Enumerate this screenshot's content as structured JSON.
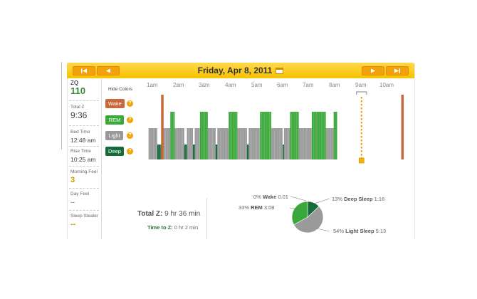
{
  "header": {
    "date": "Friday, Apr 8, 2011",
    "buttons": [
      "first-day",
      "previous-day",
      "next-day",
      "last-day"
    ]
  },
  "stats": {
    "zq_label": "ZQ",
    "zq_value": "110",
    "total_z_label": "Total Z",
    "total_z_value": "9:36",
    "bed_time_label": "Bed Time",
    "bed_time_value": "12:48 am",
    "rise_time_label": "Rise Time",
    "rise_time_value": "10:25 am",
    "morning_feel_label": "Morning Feel",
    "morning_feel_value": "3",
    "day_feel_label": "Day Feel",
    "day_feel_value": "--",
    "sleep_stealer_label": "Sleep Stealer",
    "sleep_stealer_value": "--"
  },
  "legend": {
    "hide_colors": "Hide Colors",
    "help": "?",
    "items": [
      {
        "label": "Wake",
        "color": "#c8673a"
      },
      {
        "label": "REM",
        "color": "#3aa83a"
      },
      {
        "label": "Light",
        "color": "#999999"
      },
      {
        "label": "Deep",
        "color": "#176a3a"
      }
    ]
  },
  "chart_data": {
    "type": "bar",
    "hour_labels": [
      "1am",
      "2am",
      "3am",
      "4am",
      "5am",
      "6am",
      "7am",
      "8am",
      "9am",
      "10am"
    ],
    "stage_values": {
      "Wake": 4,
      "REM": 3,
      "Light": 2,
      "Deep": 1
    },
    "segments": [
      {
        "stage": "Light",
        "minutes": 20
      },
      {
        "stage": "Deep",
        "minutes": 12
      },
      {
        "stage": "Light",
        "minutes": 18
      },
      {
        "stage": "REM",
        "minutes": 10
      },
      {
        "stage": "Light",
        "minutes": 22
      },
      {
        "stage": "Deep",
        "minutes": 6
      },
      {
        "stage": "Light",
        "minutes": 14
      },
      {
        "stage": "Deep",
        "minutes": 4
      },
      {
        "stage": "Light",
        "minutes": 12
      },
      {
        "stage": "REM",
        "minutes": 18
      },
      {
        "stage": "Light",
        "minutes": 18
      },
      {
        "stage": "Deep",
        "minutes": 4
      },
      {
        "stage": "Light",
        "minutes": 26
      },
      {
        "stage": "REM",
        "minutes": 20
      },
      {
        "stage": "Light",
        "minutes": 22
      },
      {
        "stage": "Deep",
        "minutes": 4
      },
      {
        "stage": "Light",
        "minutes": 26
      },
      {
        "stage": "REM",
        "minutes": 26
      },
      {
        "stage": "Light",
        "minutes": 26
      },
      {
        "stage": "Deep",
        "minutes": 3
      },
      {
        "stage": "Light",
        "minutes": 14
      },
      {
        "stage": "REM",
        "minutes": 20
      },
      {
        "stage": "Light",
        "minutes": 30
      },
      {
        "stage": "REM",
        "minutes": 32
      },
      {
        "stage": "Light",
        "minutes": 18
      },
      {
        "stage": "REM",
        "minutes": 8
      }
    ],
    "wake_markers_hours": [
      0.28,
      9.47
    ],
    "current_marker_hour": 7.95
  },
  "summary": {
    "total_z_label": "Total Z:",
    "total_z_value": "9 hr 36 min",
    "time_to_z_label": "Time to Z:",
    "time_to_z_value": "0 hr 2 min"
  },
  "pie": {
    "slices": [
      {
        "name": "Wake",
        "percent": 0,
        "time": "0:01",
        "color": "#c8673a"
      },
      {
        "name": "Deep Sleep",
        "percent": 13,
        "time": "1:16",
        "color": "#176a3a"
      },
      {
        "name": "Light Sleep",
        "percent": 54,
        "time": "5:13",
        "color": "#9a9a9a"
      },
      {
        "name": "REM",
        "percent": 33,
        "time": "3:08",
        "color": "#3aa83a"
      }
    ],
    "labels": {
      "wake": {
        "pct": "0%",
        "name": "Wake",
        "time": "0.01"
      },
      "deep": {
        "pct": "13%",
        "name": "Deep Sleep",
        "time": "1:16"
      },
      "rem": {
        "pct": "33%",
        "name": "REM",
        "time": "3:08"
      },
      "light": {
        "pct": "54%",
        "name": "Light Sleep",
        "time": "5:13"
      }
    }
  }
}
